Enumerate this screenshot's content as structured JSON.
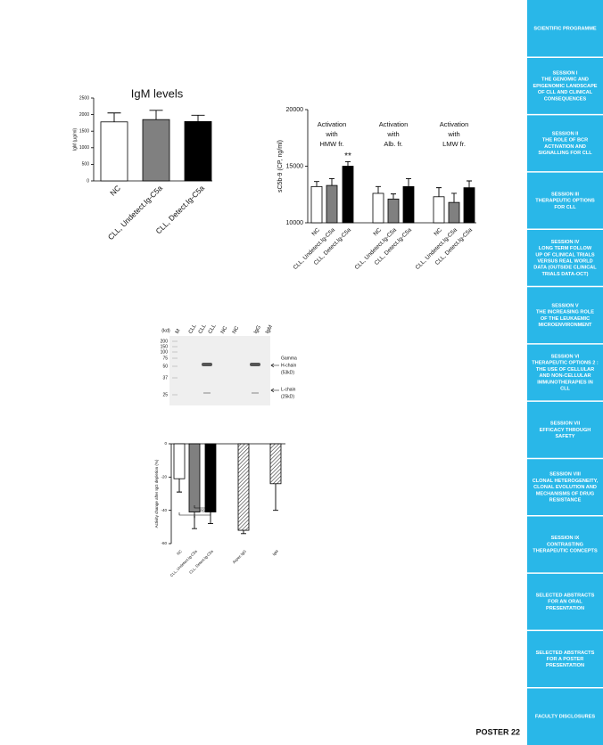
{
  "chart_data": [
    {
      "type": "bar",
      "title": "IgM levels",
      "y_label": "IgM (µg/ml)",
      "categories": [
        "NC",
        "CLL, Undetect.Ig-C5a",
        "CLL, Detect.Ig-C5a"
      ],
      "values": [
        1780,
        1850,
        1790
      ],
      "errors": [
        270,
        280,
        190
      ],
      "colors": [
        "#ffffff",
        "#808080",
        "#000000"
      ],
      "ylim": [
        0,
        2500
      ],
      "yticks": [
        0,
        500,
        1000,
        1500,
        2000,
        2500
      ]
    },
    {
      "type": "bar",
      "y_label": "sC5b-9 (CP, ng/ml)",
      "categories": [
        "NC",
        "CLL, Undetect.Ig-C5a",
        "CLL, Detect.Ig-C5a",
        "NC",
        "CLL, Undetect.Ig-C5a",
        "CLL, Detect.Ig-C5a",
        "NC",
        "CLL, Undetect.Ig-C5a",
        "CLL, Detect.Ig-C5a"
      ],
      "values": [
        13200,
        13300,
        15000,
        12600,
        12100,
        13200,
        12300,
        11800,
        13100
      ],
      "errors": [
        450,
        600,
        400,
        600,
        450,
        700,
        800,
        800,
        600
      ],
      "colors": [
        "#ffffff",
        "#808080",
        "#000000"
      ],
      "group_labels": [
        [
          "Activation",
          "with",
          "HMW fr."
        ],
        [
          "Activation",
          "with",
          "Alb. fr."
        ],
        [
          "Activation",
          "with",
          "LMW fr."
        ]
      ],
      "significance": "**",
      "ylim": [
        10000,
        20000
      ],
      "yticks": [
        10000,
        15000,
        20000
      ]
    },
    {
      "type": "bar",
      "y_label": "Activity change after IgG depletion (%)",
      "categories": [
        "NC",
        "CLL, Undetect.Ig-C5a",
        "CLL, Detect.Ig-C5a",
        "Aspec IgG",
        "IgM"
      ],
      "values": [
        -21,
        -41,
        -41,
        -52,
        -24
      ],
      "errors": [
        8,
        10,
        7,
        2,
        16
      ],
      "colors": [
        "#ffffff",
        "#808080",
        "#000000",
        "#ffffff",
        "#ffffff"
      ],
      "hatched": [
        false,
        false,
        false,
        true,
        true
      ],
      "annotations": [
        "ns",
        "*"
      ],
      "ylim": [
        -60,
        0
      ],
      "yticks": [
        -60,
        -40,
        -20,
        0
      ]
    }
  ],
  "blot": {
    "units": "(kd)",
    "lanes": [
      "M",
      "CLL",
      "CLL",
      "CLL",
      "NC",
      "NC",
      "IgG",
      "IgM"
    ],
    "markers": [
      "200",
      "150",
      "100",
      "75",
      "50",
      "37",
      "25"
    ],
    "heavy": [
      "Gamma",
      "H-chain",
      "(53kD)"
    ],
    "light": [
      "L-chain",
      "(25kD)"
    ]
  },
  "sidebar": [
    [
      "SCIENTIFIC PROGRAMME"
    ],
    [
      "SESSION I",
      "THE GENOMIC AND",
      "EPIGENOMIC LANDSCAPE",
      "OF CLL AND CLINICAL",
      "CONSEQUENCES"
    ],
    [
      "SESSION II",
      "THE ROLE OF BCR",
      "ACTIVATION AND",
      "SIGNALLING FOR CLL"
    ],
    [
      "SESSION III",
      "THERAPEUTIC OPTIONS",
      "FOR CLL"
    ],
    [
      "SESSION IV",
      "LONG TERM FOLLOW",
      "UP OF CLINICAL TRIALS",
      "VERSUS REAL WORLD",
      "DATA (OUTSIDE CLINICAL",
      "TRIALS DATA-OCT)"
    ],
    [
      "SESSION V",
      "THE INCREASING ROLE",
      "OF THE LEUKAEMIC",
      "MICROENVIRONMENT"
    ],
    [
      "SESSION VI",
      "THERAPEUTIC OPTIONS 2 :",
      "THE USE OF CELLULAR",
      "AND NON-CELLULAR",
      "IMMUNOTHERAPIES IN",
      "CLL"
    ],
    [
      "SESSION VII",
      "EFFICACY THROUGH",
      "SAFETY"
    ],
    [
      "SESSION VIII",
      "CLONAL HETEROGENEITY,",
      "CLONAL EVOLUTION AND",
      "MECHANISMS OF DRUG",
      "RESISTANCE"
    ],
    [
      "SESSION IX",
      "CONTRASTING",
      "THERAPEUTIC CONCEPTS"
    ],
    [
      "SELECTED ABSTRACTS",
      "FOR AN ORAL",
      "PRESENTATION"
    ],
    [
      "SELECTED ABSTRACTS",
      "FOR A POSTER",
      "PRESENTATION"
    ],
    [
      "FACULTY DISCLOSURES"
    ]
  ],
  "footer": "POSTER 22"
}
